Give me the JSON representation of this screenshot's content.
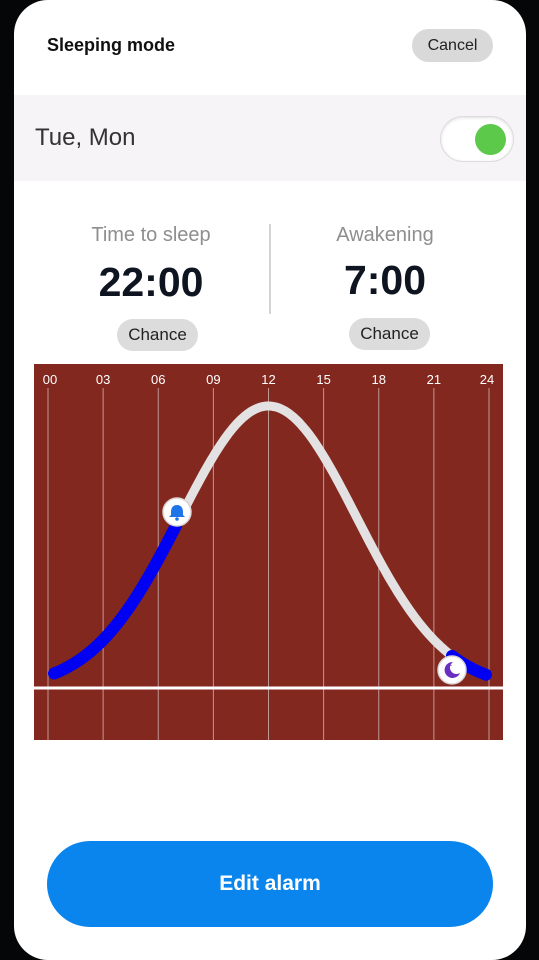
{
  "header": {
    "title": "Sleeping mode",
    "cancel_label": "Cancel"
  },
  "schedule": {
    "days": "Tue, Mon",
    "enabled": true
  },
  "sleep": {
    "label": "Time to sleep",
    "time": "22:00",
    "change_label": "Chance"
  },
  "wake": {
    "label": "Awakening",
    "time": "7:00",
    "change_label": "Chance"
  },
  "chart": {
    "hour_labels": [
      "00",
      "03",
      "06",
      "09",
      "12",
      "15",
      "18",
      "21",
      "24"
    ],
    "wake_marker": "bell-icon",
    "sleep_marker": "moon-icon",
    "colors": {
      "background": "#83281f",
      "grid": "#d9c9c6",
      "awake_curve": "#e4e1e2",
      "sleep_curve": "#0000f2",
      "baseline": "#ffffff"
    }
  },
  "footer": {
    "edit_label": "Edit alarm"
  }
}
